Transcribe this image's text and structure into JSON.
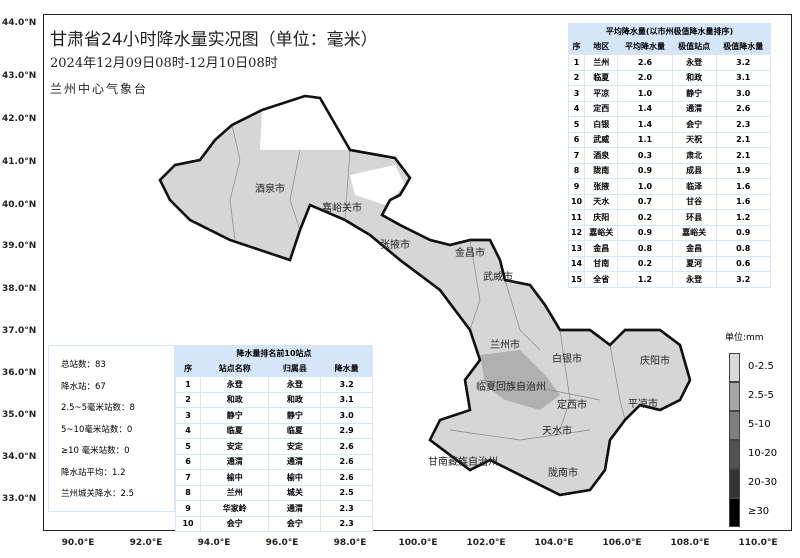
{
  "title": "甘肃省24小时降水量实况图（单位：毫米）",
  "subtitle": "2024年12月09日08时-12月10日08时",
  "organization": "兰州中心气象台",
  "lat_labels": [
    "44.0°N",
    "43.0°N",
    "42.0°N",
    "41.0°N",
    "40.0°N",
    "39.0°N",
    "38.0°N",
    "37.0°N",
    "36.0°N",
    "35.0°N",
    "34.0°N",
    "33.0°N"
  ],
  "lon_labels": [
    "90.0°E",
    "92.0°E",
    "94.0°E",
    "96.0°E",
    "98.0°E",
    "100.0°E",
    "102.0°E",
    "104.0°E",
    "106.0°E",
    "108.0°E",
    "110.0°E"
  ],
  "cities": [
    "酒泉市",
    "嘉峪关市",
    "张掖市",
    "金昌市",
    "武威市",
    "兰州市",
    "白银市",
    "临夏回族自治州",
    "定西市",
    "天水市",
    "庆阳市",
    "平凉市",
    "甘南藏族自治州",
    "陇南市"
  ],
  "region_table": {
    "title": "平均降水量(以市州极值降水量排序)",
    "headers": [
      "序",
      "地区",
      "平均降水量",
      "极值站点",
      "极值降水量"
    ],
    "rows": [
      [
        "1",
        "兰州",
        "2.6",
        "永登",
        "3.2"
      ],
      [
        "2",
        "临夏",
        "2.0",
        "和政",
        "3.1"
      ],
      [
        "3",
        "平凉",
        "1.0",
        "静宁",
        "3.0"
      ],
      [
        "4",
        "定西",
        "1.4",
        "通渭",
        "2.6"
      ],
      [
        "5",
        "白银",
        "1.4",
        "会宁",
        "2.3"
      ],
      [
        "6",
        "武威",
        "1.1",
        "天祝",
        "2.1"
      ],
      [
        "7",
        "酒泉",
        "0.3",
        "肃北",
        "2.1"
      ],
      [
        "8",
        "陇南",
        "0.9",
        "成县",
        "1.9"
      ],
      [
        "9",
        "张掖",
        "1.0",
        "临泽",
        "1.6"
      ],
      [
        "10",
        "天水",
        "0.7",
        "甘谷",
        "1.6"
      ],
      [
        "11",
        "庆阳",
        "0.2",
        "环县",
        "1.2"
      ],
      [
        "12",
        "嘉峪关",
        "0.9",
        "嘉峪关",
        "0.9"
      ],
      [
        "13",
        "金昌",
        "0.8",
        "金昌",
        "0.8"
      ],
      [
        "14",
        "甘南",
        "0.2",
        "夏河",
        "0.6"
      ],
      [
        "15",
        "全省",
        "1.2",
        "永登",
        "3.2"
      ]
    ]
  },
  "stats": [
    "总站数：83",
    "降水站：67",
    "2.5~5毫米站数：8",
    "5~10毫米站数：0",
    "≥10 毫米站数：0",
    "降水站平均：1.2",
    "兰州城关降水：2.5"
  ],
  "top10_table": {
    "title": "降水量排名前10站点",
    "headers": [
      "序",
      "站点名称",
      "归属县",
      "降水量"
    ],
    "rows": [
      [
        "1",
        "永登",
        "永登",
        "3.2"
      ],
      [
        "2",
        "和政",
        "和政",
        "3.1"
      ],
      [
        "3",
        "静宁",
        "静宁",
        "3.0"
      ],
      [
        "4",
        "临夏",
        "临夏",
        "2.9"
      ],
      [
        "5",
        "安定",
        "安定",
        "2.6"
      ],
      [
        "6",
        "通渭",
        "通渭",
        "2.6"
      ],
      [
        "7",
        "榆中",
        "榆中",
        "2.6"
      ],
      [
        "8",
        "兰州",
        "城关",
        "2.5"
      ],
      [
        "9",
        "华家岭",
        "通渭",
        "2.3"
      ],
      [
        "10",
        "会宁",
        "会宁",
        "2.3"
      ]
    ]
  },
  "legend": {
    "unit": "单位:mm",
    "classes": [
      {
        "label": "0-2.5",
        "color": "#d9d9d9"
      },
      {
        "label": "2.5-5",
        "color": "#a6a6a6"
      },
      {
        "label": "5-10",
        "color": "#7f7f7f"
      },
      {
        "label": "10-20",
        "color": "#525252"
      },
      {
        "label": "20-30",
        "color": "#333333"
      },
      {
        "label": "≥30",
        "color": "#000000"
      }
    ]
  }
}
